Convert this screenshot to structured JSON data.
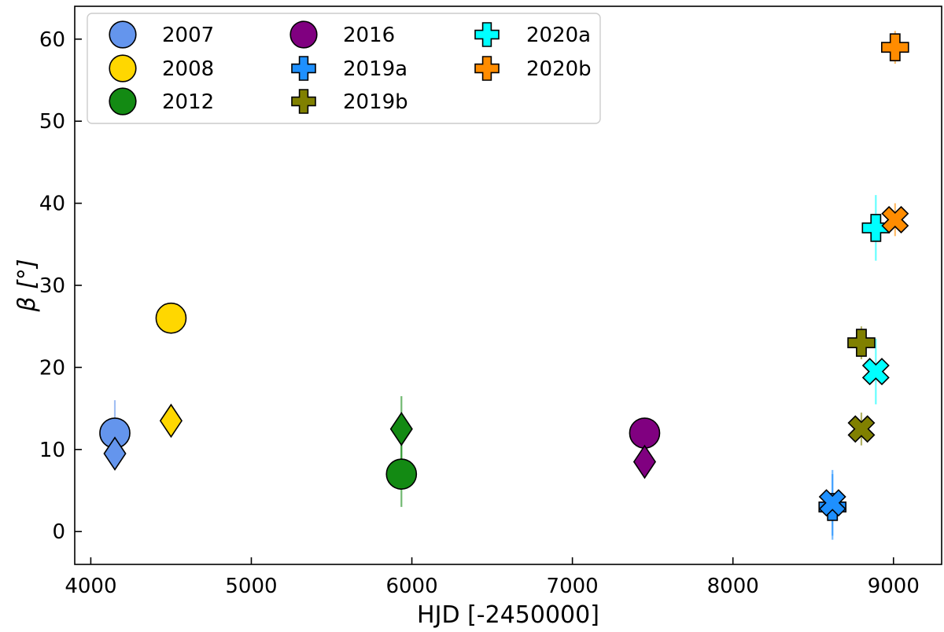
{
  "chart_data": {
    "type": "scatter",
    "xlabel": "HJD [-2450000]",
    "ylabel": "β [°]",
    "xlim": [
      3900,
      9300
    ],
    "ylim": [
      -4,
      64
    ],
    "xticks": [
      4000,
      5000,
      6000,
      7000,
      8000,
      9000
    ],
    "yticks": [
      0,
      10,
      20,
      30,
      40,
      50,
      60
    ],
    "grid": false,
    "legend": {
      "placement": "top-left",
      "columns": 3
    },
    "series": [
      {
        "name": "2007",
        "color": "#6495ed",
        "marker": "circle",
        "points": [
          {
            "x": 4150,
            "y": 12,
            "err": 4,
            "marker": "circle"
          },
          {
            "x": 4150,
            "y": 9.5,
            "err": 0,
            "marker": "diamond"
          }
        ]
      },
      {
        "name": "2008",
        "color": "#ffd700",
        "marker": "circle",
        "points": [
          {
            "x": 4500,
            "y": 26,
            "err": 0,
            "marker": "circle"
          },
          {
            "x": 4500,
            "y": 13.5,
            "err": 0,
            "marker": "diamond"
          }
        ]
      },
      {
        "name": "2012",
        "color": "#138a13",
        "marker": "circle",
        "points": [
          {
            "x": 5935,
            "y": 7,
            "err": 4,
            "marker": "circle"
          },
          {
            "x": 5935,
            "y": 12.5,
            "err": 4,
            "marker": "diamond"
          }
        ]
      },
      {
        "name": "2016",
        "color": "#800080",
        "marker": "circle",
        "points": [
          {
            "x": 7450,
            "y": 12,
            "err": 0,
            "marker": "circle"
          },
          {
            "x": 7450,
            "y": 8.5,
            "err": 0,
            "marker": "diamond"
          }
        ]
      },
      {
        "name": "2019a",
        "color": "#1e90ff",
        "marker": "plus",
        "points": [
          {
            "x": 8620,
            "y": 3,
            "err": 4,
            "marker": "plus"
          },
          {
            "x": 8620,
            "y": 3.5,
            "err": 4,
            "marker": "x"
          }
        ]
      },
      {
        "name": "2019b",
        "color": "#808000",
        "marker": "plus",
        "points": [
          {
            "x": 8800,
            "y": 23,
            "err": 2,
            "marker": "plus"
          },
          {
            "x": 8800,
            "y": 12.5,
            "err": 2,
            "marker": "x"
          }
        ]
      },
      {
        "name": "2020a",
        "color": "#00ffff",
        "marker": "plus",
        "points": [
          {
            "x": 8890,
            "y": 37,
            "err": 4,
            "marker": "plus"
          },
          {
            "x": 8890,
            "y": 19.5,
            "err": 4,
            "marker": "x"
          }
        ]
      },
      {
        "name": "2020b",
        "color": "#ff8c00",
        "marker": "plus",
        "points": [
          {
            "x": 9010,
            "y": 59,
            "err": 2,
            "marker": "plus"
          },
          {
            "x": 9010,
            "y": 38,
            "err": 2,
            "marker": "x"
          }
        ]
      }
    ]
  }
}
